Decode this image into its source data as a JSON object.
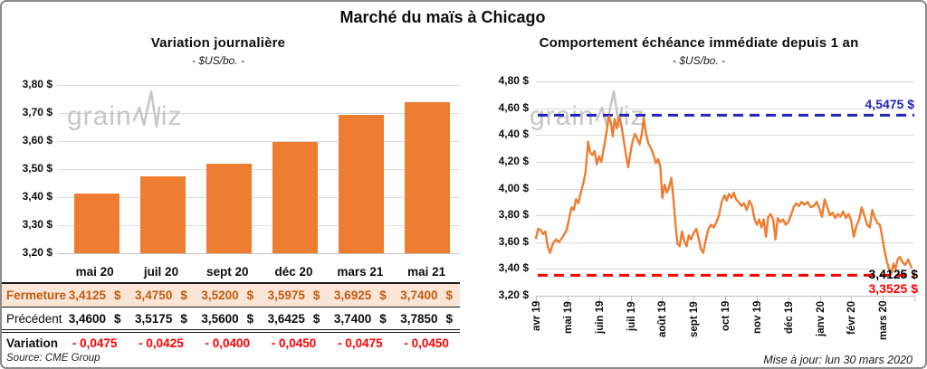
{
  "page_title": "Marché du maïs à Chicago",
  "watermark": {
    "part1": "grain",
    "part2": "iz"
  },
  "source_note": "Source: CME Group",
  "update_note": "Mise à jour: lun 30 mars 2020",
  "colors": {
    "bar_orange": "#ED7D31",
    "grid_gray": "#D9D9D9",
    "high_blue": "#2323BE",
    "low_red": "#FF0000",
    "fermeture_text": "#C05A11",
    "fermeture_bg": "#FBE5D6"
  },
  "chart_data": [
    {
      "type": "bar",
      "title": "Variation journalière",
      "subtitle": "- $US/bo. -",
      "categories": [
        "mai 20",
        "juil 20",
        "sept 20",
        "déc 20",
        "mars 21",
        "mai 21"
      ],
      "values": [
        3.4125,
        3.475,
        3.52,
        3.5975,
        3.6925,
        3.74
      ],
      "ylabel": "$US/bo.",
      "ylim": [
        3.2,
        3.8
      ],
      "ytick_step": 0.1,
      "y_tick_labels": [
        "3,80 $",
        "3,70 $",
        "3,60 $",
        "3,50 $",
        "3,40 $",
        "3,30 $",
        "3,20 $"
      ],
      "grid": true,
      "bar_color": "#ED7D31"
    },
    {
      "type": "line",
      "title": "Comportement échéance immédiate depuis 1 an",
      "subtitle": "- $US/bo. -",
      "ylabel": "$US/bo.",
      "ylim": [
        3.2,
        4.8
      ],
      "ytick_step": 0.2,
      "y_tick_labels": [
        "4,80 $",
        "4,60 $",
        "4,40 $",
        "4,20 $",
        "4,00 $",
        "3,80 $",
        "3,60 $",
        "3,40 $",
        "3,20 $"
      ],
      "x_labels": [
        "avr 19",
        "mai 19",
        "juin 19",
        "juil 19",
        "août 19",
        "sept 19",
        "oct 19",
        "nov 19",
        "déc 19",
        "janv 20",
        "févr 20",
        "mars 20"
      ],
      "grid": true,
      "line_color": "#ED7D31",
      "high_line": {
        "value": 4.5475,
        "label": "4,5475 $",
        "color": "#2323BE"
      },
      "low_line": {
        "value": 3.3525,
        "label": "3,3525 $",
        "color": "#FF0000"
      },
      "last_point_label": {
        "value": 3.4125,
        "label": "3,4125 $",
        "color": "#000000"
      },
      "points": [
        [
          0.0,
          3.63
        ],
        [
          0.006,
          3.7
        ],
        [
          0.013,
          3.69
        ],
        [
          0.019,
          3.66
        ],
        [
          0.025,
          3.68
        ],
        [
          0.031,
          3.57
        ],
        [
          0.037,
          3.52
        ],
        [
          0.045,
          3.59
        ],
        [
          0.053,
          3.62
        ],
        [
          0.061,
          3.6
        ],
        [
          0.071,
          3.64
        ],
        [
          0.081,
          3.69
        ],
        [
          0.088,
          3.78
        ],
        [
          0.094,
          3.86
        ],
        [
          0.1,
          3.84
        ],
        [
          0.106,
          3.92
        ],
        [
          0.112,
          3.89
        ],
        [
          0.118,
          3.96
        ],
        [
          0.125,
          4.04
        ],
        [
          0.131,
          4.12
        ],
        [
          0.138,
          4.35
        ],
        [
          0.143,
          4.27
        ],
        [
          0.149,
          4.25
        ],
        [
          0.155,
          4.28
        ],
        [
          0.161,
          4.18
        ],
        [
          0.167,
          4.24
        ],
        [
          0.173,
          4.2
        ],
        [
          0.18,
          4.31
        ],
        [
          0.187,
          4.43
        ],
        [
          0.193,
          4.54
        ],
        [
          0.198,
          4.49
        ],
        [
          0.203,
          4.39
        ],
        [
          0.208,
          4.52
        ],
        [
          0.214,
          4.45
        ],
        [
          0.22,
          4.54
        ],
        [
          0.226,
          4.47
        ],
        [
          0.232,
          4.36
        ],
        [
          0.238,
          4.25
        ],
        [
          0.244,
          4.16
        ],
        [
          0.25,
          4.27
        ],
        [
          0.256,
          4.36
        ],
        [
          0.262,
          4.41
        ],
        [
          0.268,
          4.37
        ],
        [
          0.274,
          4.33
        ],
        [
          0.28,
          4.41
        ],
        [
          0.285,
          4.53
        ],
        [
          0.291,
          4.41
        ],
        [
          0.297,
          4.34
        ],
        [
          0.304,
          4.3
        ],
        [
          0.311,
          4.25
        ],
        [
          0.317,
          4.19
        ],
        [
          0.323,
          4.22
        ],
        [
          0.329,
          4.16
        ],
        [
          0.334,
          3.93
        ],
        [
          0.34,
          4.03
        ],
        [
          0.346,
          3.97
        ],
        [
          0.352,
          4.01
        ],
        [
          0.358,
          4.08
        ],
        [
          0.363,
          3.94
        ],
        [
          0.368,
          3.76
        ],
        [
          0.374,
          3.59
        ],
        [
          0.38,
          3.57
        ],
        [
          0.386,
          3.68
        ],
        [
          0.392,
          3.61
        ],
        [
          0.398,
          3.57
        ],
        [
          0.404,
          3.65
        ],
        [
          0.41,
          3.62
        ],
        [
          0.417,
          3.67
        ],
        [
          0.424,
          3.7
        ],
        [
          0.43,
          3.63
        ],
        [
          0.436,
          3.55
        ],
        [
          0.442,
          3.52
        ],
        [
          0.449,
          3.62
        ],
        [
          0.456,
          3.7
        ],
        [
          0.463,
          3.73
        ],
        [
          0.47,
          3.71
        ],
        [
          0.477,
          3.75
        ],
        [
          0.484,
          3.8
        ],
        [
          0.491,
          3.9
        ],
        [
          0.498,
          3.95
        ],
        [
          0.504,
          3.91
        ],
        [
          0.51,
          3.96
        ],
        [
          0.517,
          3.93
        ],
        [
          0.523,
          3.97
        ],
        [
          0.529,
          3.92
        ],
        [
          0.536,
          3.9
        ],
        [
          0.543,
          3.87
        ],
        [
          0.55,
          3.89
        ],
        [
          0.557,
          3.84
        ],
        [
          0.564,
          3.91
        ],
        [
          0.571,
          3.87
        ],
        [
          0.578,
          3.77
        ],
        [
          0.584,
          3.73
        ],
        [
          0.59,
          3.77
        ],
        [
          0.596,
          3.71
        ],
        [
          0.602,
          3.77
        ],
        [
          0.608,
          3.64
        ],
        [
          0.614,
          3.79
        ],
        [
          0.62,
          3.81
        ],
        [
          0.627,
          3.77
        ],
        [
          0.633,
          3.62
        ],
        [
          0.639,
          3.78
        ],
        [
          0.646,
          3.75
        ],
        [
          0.653,
          3.77
        ],
        [
          0.66,
          3.73
        ],
        [
          0.667,
          3.75
        ],
        [
          0.674,
          3.8
        ],
        [
          0.681,
          3.86
        ],
        [
          0.688,
          3.89
        ],
        [
          0.695,
          3.87
        ],
        [
          0.702,
          3.9
        ],
        [
          0.71,
          3.88
        ],
        [
          0.718,
          3.9
        ],
        [
          0.726,
          3.86
        ],
        [
          0.734,
          3.87
        ],
        [
          0.742,
          3.9
        ],
        [
          0.749,
          3.85
        ],
        [
          0.756,
          3.79
        ],
        [
          0.763,
          3.92
        ],
        [
          0.77,
          3.86
        ],
        [
          0.777,
          3.8
        ],
        [
          0.784,
          3.82
        ],
        [
          0.791,
          3.78
        ],
        [
          0.798,
          3.81
        ],
        [
          0.805,
          3.79
        ],
        [
          0.812,
          3.83
        ],
        [
          0.819,
          3.78
        ],
        [
          0.826,
          3.81
        ],
        [
          0.833,
          3.76
        ],
        [
          0.84,
          3.64
        ],
        [
          0.847,
          3.72
        ],
        [
          0.854,
          3.77
        ],
        [
          0.861,
          3.86
        ],
        [
          0.868,
          3.8
        ],
        [
          0.875,
          3.73
        ],
        [
          0.882,
          3.71
        ],
        [
          0.889,
          3.84
        ],
        [
          0.896,
          3.78
        ],
        [
          0.903,
          3.74
        ],
        [
          0.909,
          3.73
        ],
        [
          0.915,
          3.64
        ],
        [
          0.921,
          3.54
        ],
        [
          0.927,
          3.46
        ],
        [
          0.933,
          3.4
        ],
        [
          0.939,
          3.36
        ],
        [
          0.945,
          3.44
        ],
        [
          0.95,
          3.4
        ],
        [
          0.956,
          3.47
        ],
        [
          0.962,
          3.49
        ],
        [
          0.969,
          3.45
        ],
        [
          0.976,
          3.43
        ],
        [
          0.984,
          3.47
        ],
        [
          0.992,
          3.4125
        ]
      ]
    }
  ],
  "table": {
    "columns": [
      "mai 20",
      "juil 20",
      "sept 20",
      "déc 20",
      "mars 21",
      "mai 21"
    ],
    "rows": [
      {
        "label": "Fermeture",
        "suffix": "$",
        "values": [
          "3,4125",
          "3,4750",
          "3,5200",
          "3,5975",
          "3,6925",
          "3,7400"
        ]
      },
      {
        "label": "Précédent",
        "suffix": "$",
        "values": [
          "3,4600",
          "3,5175",
          "3,5600",
          "3,6425",
          "3,7400",
          "3,7850"
        ]
      },
      {
        "label": "Variation",
        "suffix": "",
        "values": [
          "- 0,0475",
          "- 0,0425",
          "- 0,0400",
          "- 0,0450",
          "- 0,0475",
          "- 0,0450"
        ]
      }
    ],
    "source": "Source: CME Group"
  }
}
